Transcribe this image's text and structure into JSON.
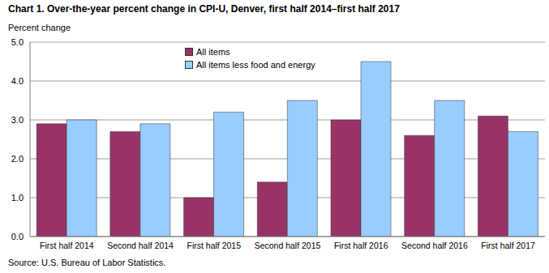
{
  "chart_data": {
    "type": "bar",
    "title": "Chart 1. Over-the-year percent change in CPI-U, Denver, first half 2014–first half 2017",
    "y_label": "Percent change",
    "source": "Source: U.S. Bureau of Labor Statistics.",
    "categories": [
      "First half 2014",
      "Second half 2014",
      "First half 2015",
      "Second half 2015",
      "First half 2016",
      "Second half 2016",
      "First half 2017"
    ],
    "series": [
      {
        "name": "All items",
        "color": "#993366",
        "values": [
          2.9,
          2.7,
          1.0,
          1.4,
          3.0,
          2.6,
          3.1
        ]
      },
      {
        "name": "All items less food and energy",
        "color": "#99ccff",
        "values": [
          3.0,
          2.9,
          3.2,
          3.5,
          4.5,
          3.5,
          2.7
        ]
      }
    ],
    "ylim": [
      0,
      5
    ],
    "yticks": [
      {
        "value": 0,
        "label": "0.0"
      },
      {
        "value": 1,
        "label": "1.0"
      },
      {
        "value": 2,
        "label": "2.0"
      },
      {
        "value": 3,
        "label": "3.0"
      },
      {
        "value": 4,
        "label": "4.0"
      },
      {
        "value": 5,
        "label": "5.0"
      }
    ],
    "grid": true,
    "legend": "top"
  }
}
